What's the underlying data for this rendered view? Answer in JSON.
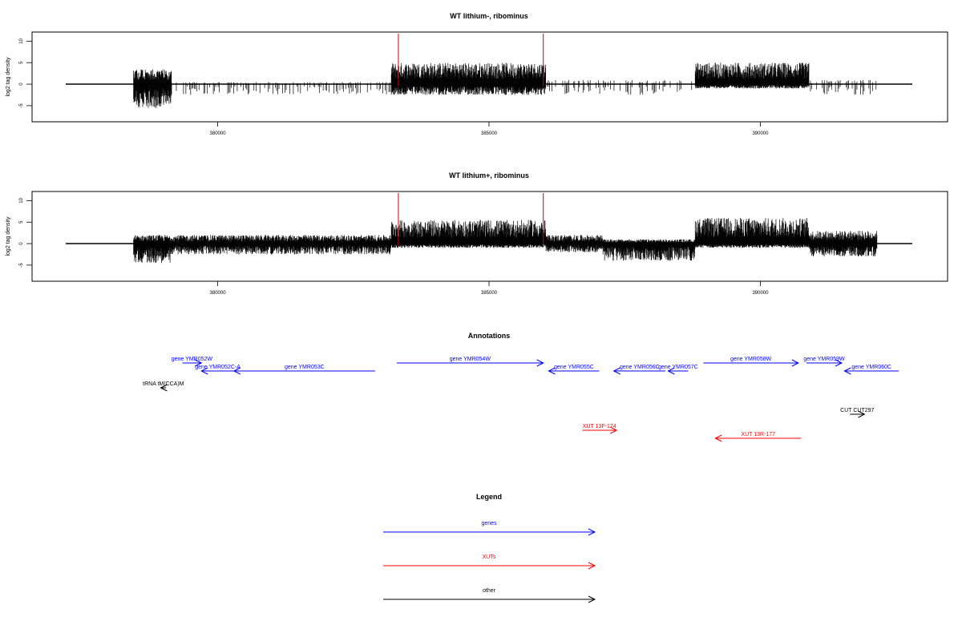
{
  "chart_data": [
    {
      "type": "bar",
      "title": "WT lithium-, ribominus",
      "ylabel": "log2 tag density",
      "xlim": [
        377200,
        392800
      ],
      "ylim": [
        -8,
        11
      ],
      "xticks": [
        380000,
        385000,
        390000
      ],
      "yticks": [
        -5,
        0,
        5,
        10
      ],
      "ytick_labels": [
        "-5",
        "0",
        "5",
        "10"
      ],
      "markers": [
        383330,
        386000
      ],
      "marker_color": "#cc0000",
      "profile": [
        {
          "start": 378450,
          "end": 379150,
          "amp": [
            3.5,
            5.5
          ]
        },
        {
          "start": 379150,
          "end": 383200,
          "amp": [
            0.5,
            2.5
          ],
          "sparse": true
        },
        {
          "start": 383200,
          "end": 386050,
          "amp": [
            5.0,
            2.5
          ]
        },
        {
          "start": 386050,
          "end": 388800,
          "amp": [
            1.0,
            2.5
          ],
          "sparse": true
        },
        {
          "start": 388800,
          "end": 390900,
          "amp": [
            5.0,
            1.0
          ]
        },
        {
          "start": 390900,
          "end": 392150,
          "amp": [
            1.0,
            2.5
          ],
          "sparse": true
        }
      ]
    },
    {
      "type": "bar",
      "title": "WT lithium+, ribominus",
      "ylabel": "log2 tag density",
      "xlim": [
        377200,
        392800
      ],
      "ylim": [
        -8,
        11
      ],
      "xticks": [
        380000,
        385000,
        390000
      ],
      "yticks": [
        -5,
        0,
        5,
        10
      ],
      "ytick_labels": [
        "-5",
        "0",
        "5",
        "10"
      ],
      "markers": [
        383330,
        386000
      ],
      "marker_color": "#cc0000",
      "profile": [
        {
          "start": 378450,
          "end": 379150,
          "amp": [
            2.0,
            4.5
          ]
        },
        {
          "start": 379150,
          "end": 383200,
          "amp": [
            2.0,
            2.5
          ]
        },
        {
          "start": 383200,
          "end": 386050,
          "amp": [
            5.5,
            1.0
          ]
        },
        {
          "start": 386050,
          "end": 387100,
          "amp": [
            2.0,
            2.0
          ]
        },
        {
          "start": 387100,
          "end": 388800,
          "amp": [
            1.0,
            4.0
          ]
        },
        {
          "start": 388800,
          "end": 390900,
          "amp": [
            6.0,
            1.0
          ]
        },
        {
          "start": 390900,
          "end": 392150,
          "amp": [
            3.0,
            3.0
          ]
        }
      ]
    }
  ],
  "annotations": {
    "title": "Annotations",
    "items": [
      {
        "label": "gene YMR052W",
        "start": 379350,
        "end": 379700,
        "strand": "+",
        "row": 0,
        "color": "#0000ff"
      },
      {
        "label": "gene YMR052C-A",
        "start": 379700,
        "end": 380300,
        "strand": "-",
        "row": 1,
        "color": "#0000ff"
      },
      {
        "label": "gene YMR053C",
        "start": 380300,
        "end": 382900,
        "strand": "-",
        "row": 1,
        "color": "#0000ff"
      },
      {
        "label": "gene YMR054W",
        "start": 383300,
        "end": 386000,
        "strand": "+",
        "row": 0,
        "color": "#0000ff"
      },
      {
        "label": "gene YMR055C",
        "start": 386100,
        "end": 387030,
        "strand": "-",
        "row": 1,
        "color": "#0000ff"
      },
      {
        "label": "gene YMR056C",
        "start": 387300,
        "end": 388250,
        "strand": "-",
        "row": 1,
        "color": "#0000ff"
      },
      {
        "label": "gene YMR057C",
        "start": 388300,
        "end": 388670,
        "strand": "-",
        "row": 1,
        "color": "#0000ff"
      },
      {
        "label": "gene YMR058W",
        "start": 388950,
        "end": 390700,
        "strand": "+",
        "row": 0,
        "color": "#0000ff"
      },
      {
        "label": "gene YMR059W",
        "start": 390850,
        "end": 391500,
        "strand": "+",
        "row": 0,
        "color": "#0000ff"
      },
      {
        "label": "gene YMR060C",
        "start": 391550,
        "end": 392550,
        "strand": "-",
        "row": 1,
        "color": "#0000ff"
      },
      {
        "label": "tRNA tM(CCA)M",
        "start": 378950,
        "end": 379050,
        "strand": "-",
        "row": 2,
        "color": "#000000"
      },
      {
        "label": "XUT 13F-174",
        "start": 386720,
        "end": 387350,
        "strand": "+",
        "row": 4,
        "color": "#ff0000"
      },
      {
        "label": "XUT 13R-177",
        "start": 389170,
        "end": 390750,
        "strand": "-",
        "row": 5,
        "color": "#ff0000"
      },
      {
        "label": "CUT CUT297",
        "start": 391650,
        "end": 391920,
        "strand": "+",
        "row": 3,
        "color": "#000000"
      }
    ]
  },
  "legend": {
    "title": "Legend",
    "items": [
      {
        "label": "genes",
        "color": "#0000ff"
      },
      {
        "label": "XUTs",
        "color": "#ff0000"
      },
      {
        "label": "other",
        "color": "#000000"
      }
    ]
  }
}
